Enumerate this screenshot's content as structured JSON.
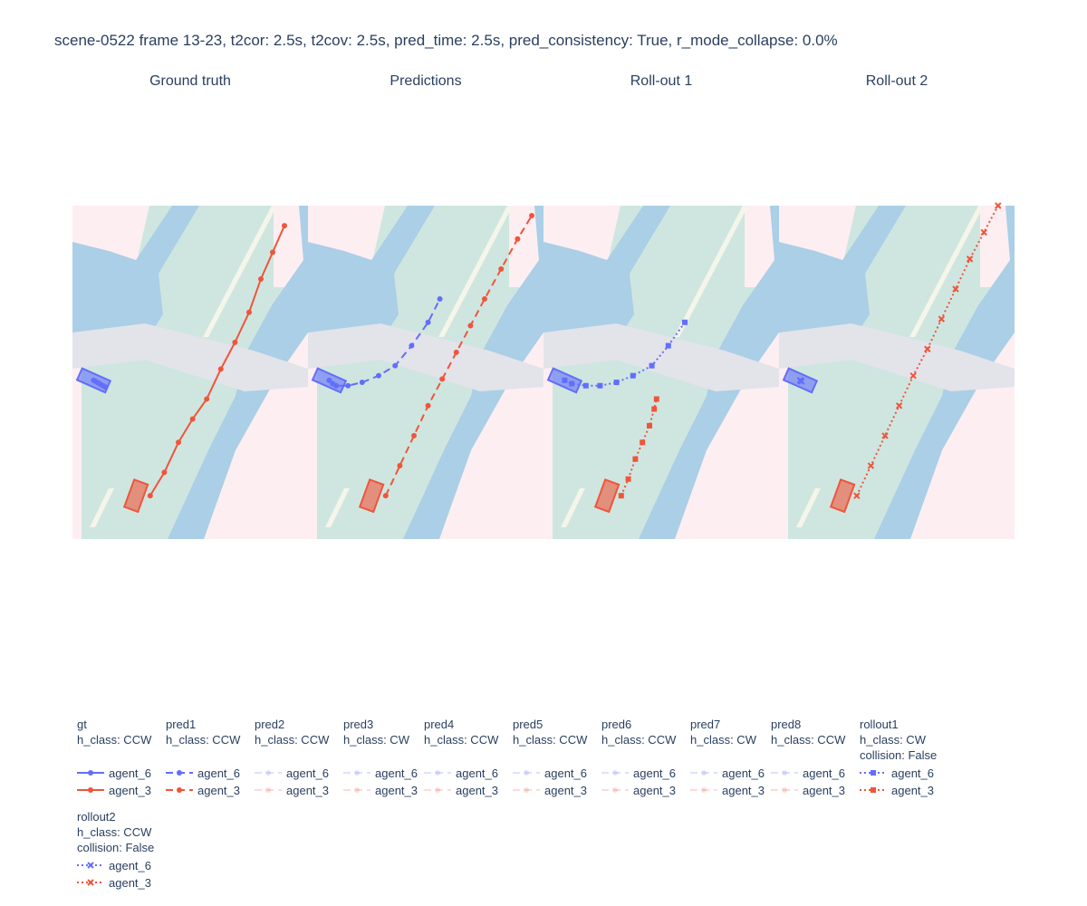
{
  "title": "scene-0522 frame 13-23, t2cor: 2.5s, t2cov: 2.5s, pred_time: 2.5s, pred_consistency: True, r_mode_collapse: 0.0%",
  "colors": {
    "agent_6": "#636efa",
    "agent_3": "#ef553b",
    "walkway": "#cfe6e0",
    "drivable": "#aacfe6",
    "crossing": "#e3e3ea",
    "background": "#fdeef2",
    "lane_divider": "#f5f5ea"
  },
  "chart_data": [
    {
      "type": "line",
      "title": "Ground truth",
      "series": [
        {
          "name": "agent_6",
          "x": [
            0.09,
            0.1,
            0.11,
            0.12,
            0.13,
            0.14
          ],
          "y": [
            -0.024,
            -0.028,
            -0.032,
            -0.036,
            -0.04,
            -0.044
          ],
          "style": "solid-circle"
        },
        {
          "name": "agent_3",
          "x": [
            0.33,
            0.39,
            0.45,
            0.51,
            0.57,
            0.63,
            0.69,
            0.75,
            0.8,
            0.85,
            0.9
          ],
          "y": [
            -0.37,
            -0.3,
            -0.21,
            -0.14,
            -0.08,
            0.01,
            0.09,
            0.18,
            0.28,
            0.36,
            0.44
          ],
          "style": "solid-circle"
        }
      ]
    },
    {
      "type": "line",
      "title": "Predictions",
      "series": [
        {
          "name": "agent_6",
          "x": [
            0.09,
            0.105,
            0.12,
            0.17,
            0.23,
            0.3,
            0.37,
            0.44,
            0.51,
            0.56
          ],
          "y": [
            -0.024,
            -0.034,
            -0.04,
            -0.04,
            -0.03,
            -0.01,
            0.02,
            0.08,
            0.15,
            0.22
          ],
          "style": "dash-circle"
        },
        {
          "name": "agent_3",
          "x": [
            0.33,
            0.39,
            0.45,
            0.51,
            0.57,
            0.63,
            0.69,
            0.75,
            0.82,
            0.89,
            0.95
          ],
          "y": [
            -0.37,
            -0.28,
            -0.19,
            -0.1,
            -0.02,
            0.06,
            0.14,
            0.22,
            0.31,
            0.4,
            0.47
          ],
          "style": "dash-circle"
        }
      ]
    },
    {
      "type": "line",
      "title": "Roll-out 1",
      "series": [
        {
          "name": "agent_6",
          "x": [
            0.09,
            0.12,
            0.18,
            0.24,
            0.31,
            0.38,
            0.46,
            0.53,
            0.6
          ],
          "y": [
            -0.024,
            -0.034,
            -0.04,
            -0.04,
            -0.03,
            -0.01,
            0.02,
            0.08,
            0.15
          ],
          "style": "dot-square"
        },
        {
          "name": "agent_3",
          "x": [
            0.33,
            0.36,
            0.39,
            0.42,
            0.45,
            0.47,
            0.48
          ],
          "y": [
            -0.37,
            -0.32,
            -0.26,
            -0.21,
            -0.16,
            -0.11,
            -0.08
          ],
          "style": "dot-square"
        }
      ]
    },
    {
      "type": "line",
      "title": "Roll-out 2",
      "series": [
        {
          "name": "agent_6",
          "x": [
            0.09,
            0.091,
            0.092,
            0.093,
            0.094,
            0.095
          ],
          "y": [
            -0.024,
            -0.025,
            -0.025,
            -0.026,
            -0.026,
            -0.027
          ],
          "style": "dot-x"
        },
        {
          "name": "agent_3",
          "x": [
            0.33,
            0.39,
            0.45,
            0.51,
            0.57,
            0.63,
            0.69,
            0.75,
            0.81,
            0.87,
            0.93
          ],
          "y": [
            -0.37,
            -0.28,
            -0.19,
            -0.1,
            -0.01,
            0.07,
            0.16,
            0.25,
            0.34,
            0.42,
            0.5
          ],
          "style": "dot-x"
        }
      ]
    }
  ],
  "legend": [
    {
      "group": "gt",
      "lines": [
        "h_class: CCW"
      ],
      "style": "solid-circle",
      "faded": false,
      "items": [
        "agent_6",
        "agent_3"
      ]
    },
    {
      "group": "pred1",
      "lines": [
        "h_class: CCW"
      ],
      "style": "dash-circle",
      "faded": false,
      "items": [
        "agent_6",
        "agent_3"
      ]
    },
    {
      "group": "pred2",
      "lines": [
        "h_class: CCW"
      ],
      "style": "dash-circle",
      "faded": true,
      "items": [
        "agent_6",
        "agent_3"
      ]
    },
    {
      "group": "pred3",
      "lines": [
        "h_class: CW"
      ],
      "style": "dash-circle",
      "faded": true,
      "items": [
        "agent_6",
        "agent_3"
      ]
    },
    {
      "group": "pred4",
      "lines": [
        "h_class: CCW"
      ],
      "style": "dash-circle",
      "faded": true,
      "items": [
        "agent_6",
        "agent_3"
      ]
    },
    {
      "group": "pred5",
      "lines": [
        "h_class: CCW"
      ],
      "style": "dash-circle",
      "faded": true,
      "items": [
        "agent_6",
        "agent_3"
      ]
    },
    {
      "group": "pred6",
      "lines": [
        "h_class: CCW"
      ],
      "style": "dash-circle",
      "faded": true,
      "items": [
        "agent_6",
        "agent_3"
      ]
    },
    {
      "group": "pred7",
      "lines": [
        "h_class: CW"
      ],
      "style": "dash-circle",
      "faded": true,
      "items": [
        "agent_6",
        "agent_3"
      ]
    },
    {
      "group": "pred8",
      "lines": [
        "h_class: CCW"
      ],
      "style": "dash-circle",
      "faded": true,
      "items": [
        "agent_6",
        "agent_3"
      ]
    },
    {
      "group": "rollout1",
      "lines": [
        "h_class: CW",
        "collision: False"
      ],
      "style": "dot-square",
      "faded": false,
      "items": [
        "agent_6",
        "agent_3"
      ]
    },
    {
      "group": "rollout2",
      "lines": [
        "h_class: CCW",
        "collision: False"
      ],
      "style": "dot-x",
      "faded": false,
      "items": [
        "agent_6",
        "agent_3"
      ]
    }
  ]
}
